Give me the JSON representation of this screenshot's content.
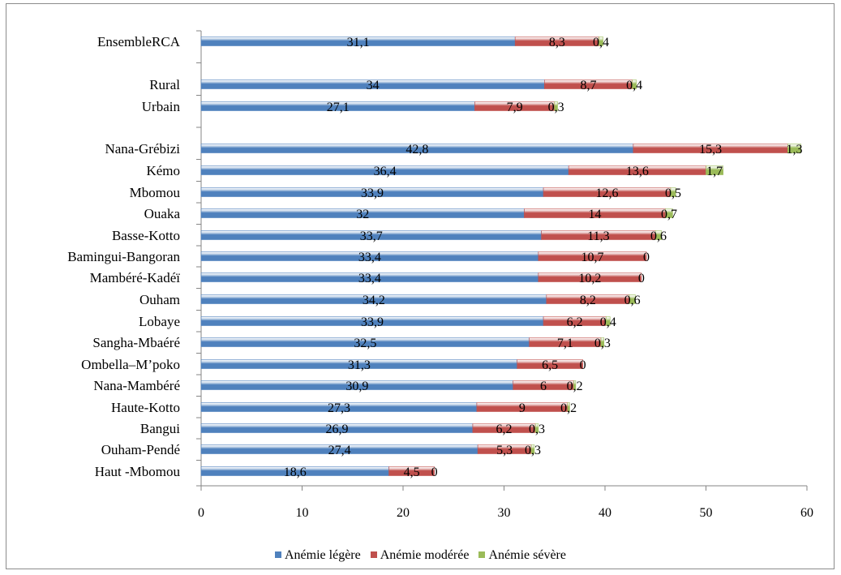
{
  "chart_data": {
    "type": "bar",
    "orientation": "horizontal",
    "stacked": true,
    "categories": [
      "EnsembleRCA",
      "Rural",
      "Urbain",
      "Nana-Grébizi",
      "Kémo",
      "Mbomou",
      "Ouaka",
      "Basse-Kotto",
      "Bamingui-Bangoran",
      "Mambéré-Kadéï",
      "Ouham",
      "Lobaye",
      "Sangha-Mbaéré",
      "Ombella–M’poko",
      "Nana-Mambéré",
      "Haute-Kotto",
      "Bangui",
      "Ouham-Pendé",
      "Haut -Mbomou"
    ],
    "series": [
      {
        "name": "Anémie légère",
        "color": "#4f81bd",
        "values": [
          31.1,
          34,
          27.1,
          42.8,
          36.4,
          33.9,
          32,
          33.7,
          33.4,
          33.4,
          34.2,
          33.9,
          32.5,
          31.3,
          30.9,
          27.3,
          26.9,
          27.4,
          18.6
        ],
        "labels": [
          "31,1",
          "34",
          "27,1",
          "42,8",
          "36,4",
          "33,9",
          "32",
          "33,7",
          "33,4",
          "33,4",
          "34,2",
          "33,9",
          "32,5",
          "31,3",
          "30,9",
          "27,3",
          "26,9",
          "27,4",
          "18,6"
        ]
      },
      {
        "name": "Anémie modérée",
        "color": "#c0504d",
        "values": [
          8.3,
          8.7,
          7.9,
          15.3,
          13.6,
          12.6,
          14,
          11.3,
          10.7,
          10.2,
          8.2,
          6.2,
          7.1,
          6.5,
          6,
          9,
          6.2,
          5.3,
          4.5
        ],
        "labels": [
          "8,3",
          "8,7",
          "7,9",
          "15,3",
          "13,6",
          "12,6",
          "14",
          "11,3",
          "10,7",
          "10,2",
          "8,2",
          "6,2",
          "7,1",
          "6,5",
          "6",
          "9",
          "6,2",
          "5,3",
          "4,5"
        ]
      },
      {
        "name": "Anémie sévère",
        "color": "#9bbb59",
        "values": [
          0.4,
          0.4,
          0.3,
          1.3,
          1.7,
          0.5,
          0.7,
          0.6,
          0,
          0,
          0.6,
          0.4,
          0.3,
          0,
          0.2,
          0.2,
          0.3,
          0.3,
          0
        ],
        "labels": [
          "0,4",
          "0,4",
          "0,3",
          "1,3",
          "1,7",
          "0,5",
          "0,7",
          "0,6",
          "0",
          "0",
          "0,6",
          "0,4",
          "0,3",
          "0",
          "0,2",
          "0,2",
          "0,3",
          "0,3",
          "0"
        ]
      }
    ],
    "xlim": [
      0,
      60
    ],
    "x_ticks": [
      0,
      10,
      20,
      30,
      40,
      50,
      60
    ],
    "grid": false,
    "legend_position": "bottom"
  }
}
